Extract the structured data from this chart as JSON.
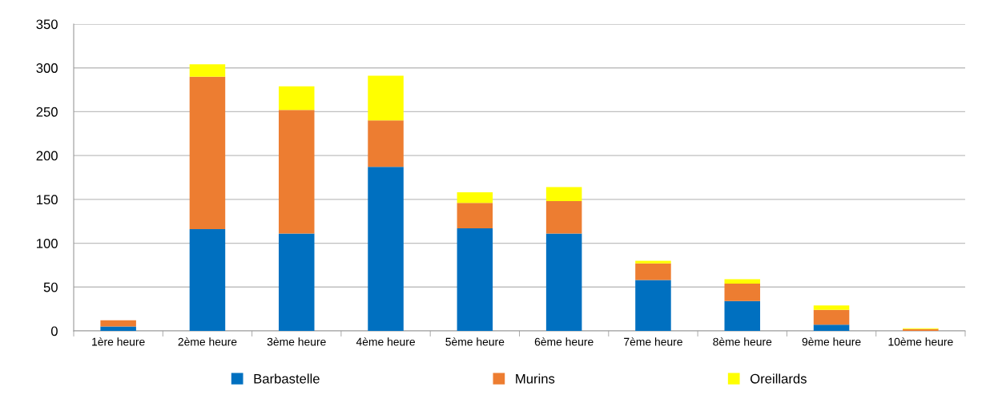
{
  "chart_data": {
    "type": "bar",
    "stacked": true,
    "categories": [
      "1ère heure",
      "2ème heure",
      "3ème heure",
      "4ème heure",
      "5ème heure",
      "6ème heure",
      "7ème heure",
      "8ème heure",
      "9ème heure",
      "10ème heure"
    ],
    "series": [
      {
        "name": "Barbastelle",
        "color": "#0070c0",
        "values": [
          5,
          116,
          111,
          187,
          117,
          111,
          58,
          34,
          7,
          0
        ]
      },
      {
        "name": "Murins",
        "color": "#ed7d31",
        "values": [
          7,
          174,
          141,
          53,
          29,
          37,
          19,
          20,
          17,
          2
        ]
      },
      {
        "name": "Oreillards",
        "color": "#ffff00",
        "values": [
          0,
          14,
          27,
          51,
          12,
          16,
          3,
          5,
          5,
          1
        ]
      }
    ],
    "ylim": [
      0,
      350
    ],
    "yticks": [
      0,
      50,
      100,
      150,
      200,
      250,
      300,
      350
    ],
    "grid": "y",
    "legend": "bottom"
  }
}
